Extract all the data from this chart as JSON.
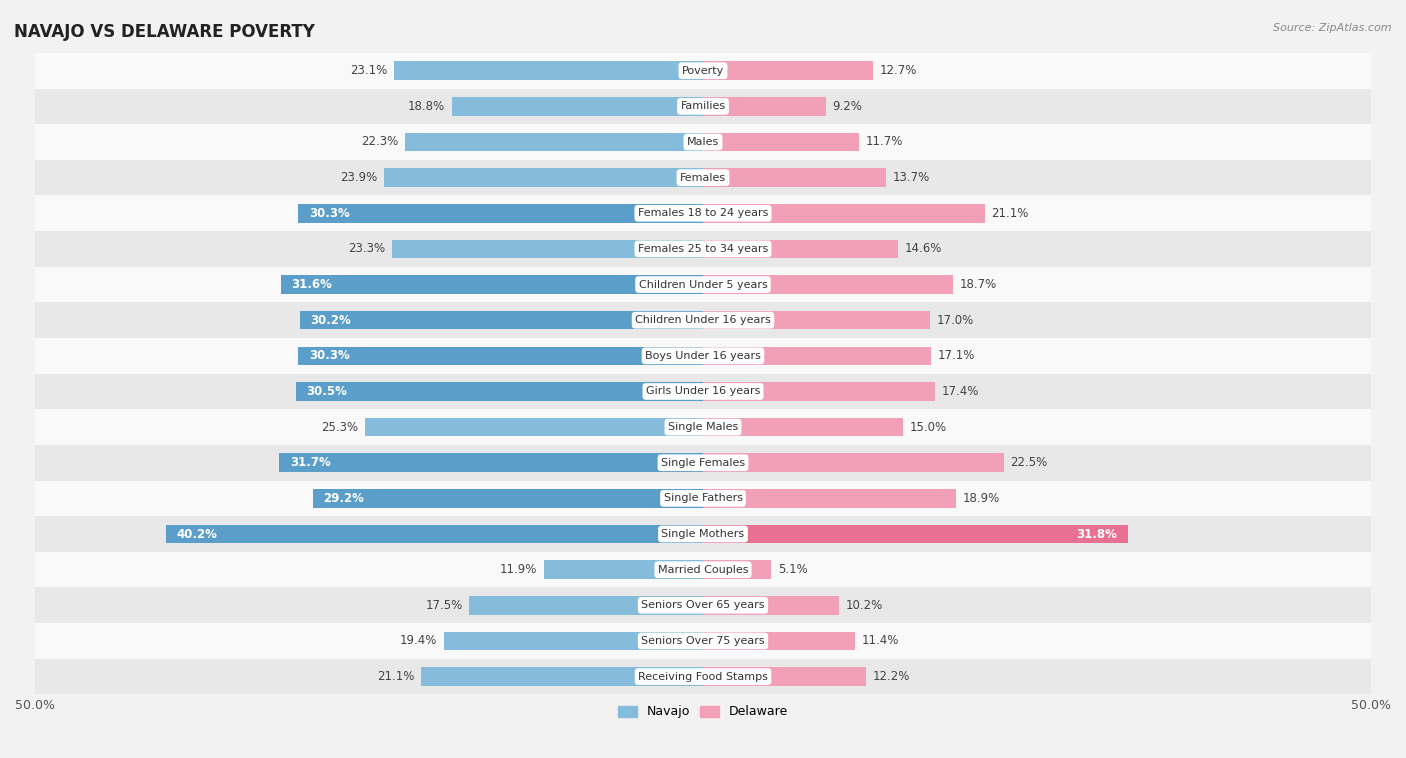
{
  "title": "NAVAJO VS DELAWARE POVERTY",
  "source": "Source: ZipAtlas.com",
  "categories": [
    "Poverty",
    "Families",
    "Males",
    "Females",
    "Females 18 to 24 years",
    "Females 25 to 34 years",
    "Children Under 5 years",
    "Children Under 16 years",
    "Boys Under 16 years",
    "Girls Under 16 years",
    "Single Males",
    "Single Females",
    "Single Fathers",
    "Single Mothers",
    "Married Couples",
    "Seniors Over 65 years",
    "Seniors Over 75 years",
    "Receiving Food Stamps"
  ],
  "navajo": [
    23.1,
    18.8,
    22.3,
    23.9,
    30.3,
    23.3,
    31.6,
    30.2,
    30.3,
    30.5,
    25.3,
    31.7,
    29.2,
    40.2,
    11.9,
    17.5,
    19.4,
    21.1
  ],
  "delaware": [
    12.7,
    9.2,
    11.7,
    13.7,
    21.1,
    14.6,
    18.7,
    17.0,
    17.1,
    17.4,
    15.0,
    22.5,
    18.9,
    31.8,
    5.1,
    10.2,
    11.4,
    12.2
  ],
  "navajo_color": "#85bbdb",
  "delaware_color": "#f2a0b8",
  "navajo_highlight_color": "#5b9ec9",
  "delaware_highlight_color": "#e87090",
  "background_color": "#f2f2f2",
  "row_light": "#f9f9f9",
  "row_dark": "#e8e8e8",
  "axis_limit": 50.0,
  "bar_height": 0.52,
  "label_fontsize": 8.5,
  "title_fontsize": 12,
  "category_fontsize": 8.0,
  "navajo_highlight_threshold": 27.0,
  "delaware_highlight_threshold": 27.0
}
